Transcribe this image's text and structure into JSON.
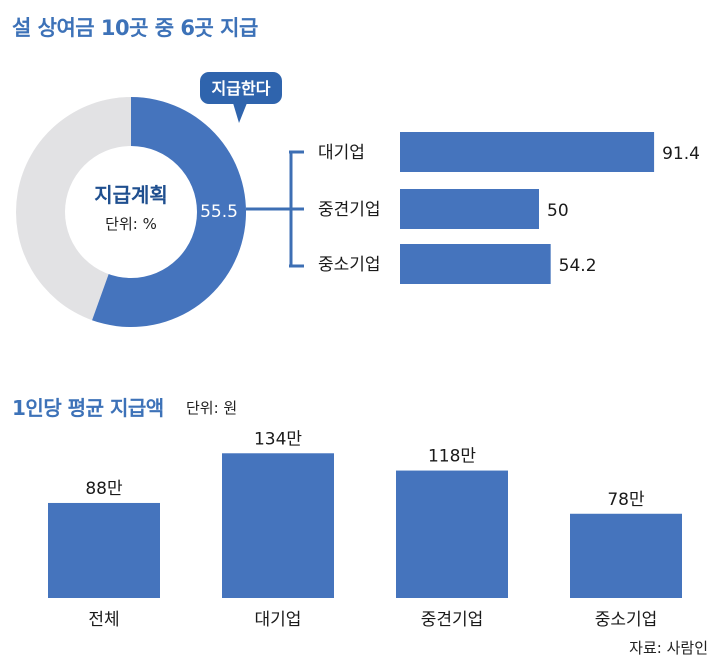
{
  "header": {
    "title": "설 상여금 10곳 중 6곳 지급"
  },
  "donut": {
    "center_title": "지급계획",
    "center_unit": "단위: %",
    "value_label": "55.5",
    "callout": "지급한다",
    "fill_color": "#4574bd",
    "rest_color": "#e2e2e4"
  },
  "chart_data": [
    {
      "type": "pie",
      "title": "지급계획",
      "unit": "단위: %",
      "slices": [
        {
          "name": "지급한다",
          "value": 55.5
        },
        {
          "value": 44.5
        }
      ]
    },
    {
      "type": "bar",
      "orientation": "horizontal",
      "categories": [
        "대기업",
        "중견기업",
        "중소기업"
      ],
      "values": [
        91.4,
        50,
        54.2
      ],
      "value_labels": [
        "91.4",
        "50",
        "54.2"
      ],
      "xlim": [
        0,
        100
      ]
    },
    {
      "type": "bar",
      "title": "1인당 평균 지급액",
      "unit": "단위: 원",
      "categories": [
        "전체",
        "대기업",
        "중견기업",
        "중소기업"
      ],
      "values": [
        88,
        134,
        118,
        78
      ],
      "value_labels": [
        "88만",
        "134만",
        "118만",
        "78만"
      ],
      "ylim": [
        0,
        140
      ]
    }
  ],
  "section2": {
    "title": "1인당 평균 지급액",
    "unit": "단위: 원"
  },
  "source": "자료: 사람인",
  "colors": {
    "accent": "#3d72b8",
    "bar": "#4574bd",
    "gray": "#e2e2e4"
  }
}
